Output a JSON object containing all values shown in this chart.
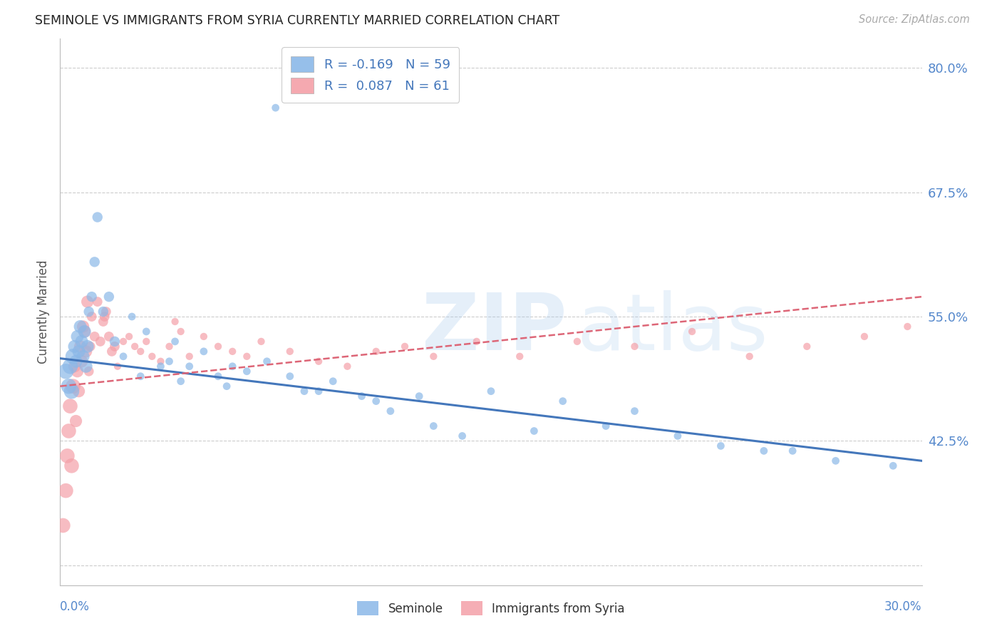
{
  "title": "SEMINOLE VS IMMIGRANTS FROM SYRIA CURRENTLY MARRIED CORRELATION CHART",
  "source": "Source: ZipAtlas.com",
  "ylabel": "Currently Married",
  "y_ticks": [
    30.0,
    42.5,
    55.0,
    67.5,
    80.0
  ],
  "y_tick_labels": [
    "",
    "42.5%",
    "55.0%",
    "67.5%",
    "80.0%"
  ],
  "x_min": 0.0,
  "x_max": 30.0,
  "y_min": 28.0,
  "y_max": 83.0,
  "blue_color": "#8BB8E8",
  "pink_color": "#F4A0A8",
  "line_blue": "#4477BB",
  "line_pink": "#DD6677",
  "background": "#FFFFFF",
  "grid_color": "#CCCCCC",
  "seminole_x": [
    0.2,
    0.3,
    0.35,
    0.4,
    0.45,
    0.5,
    0.55,
    0.6,
    0.65,
    0.7,
    0.75,
    0.8,
    0.85,
    0.9,
    0.95,
    1.0,
    1.1,
    1.2,
    1.3,
    1.5,
    1.7,
    1.9,
    2.2,
    2.5,
    3.0,
    3.5,
    4.0,
    4.5,
    5.0,
    5.5,
    6.5,
    7.2,
    8.5,
    9.5,
    10.5,
    11.5,
    13.0,
    15.0,
    17.5,
    19.0,
    21.5,
    24.5,
    27.0,
    29.0,
    7.5,
    2.8,
    6.0,
    12.5,
    20.0,
    9.0,
    14.0,
    16.5,
    23.0,
    25.5,
    11.0,
    5.8,
    3.8,
    4.2,
    8.0
  ],
  "seminole_y": [
    49.5,
    48.0,
    50.0,
    47.5,
    51.0,
    52.0,
    50.5,
    53.0,
    51.5,
    54.0,
    52.5,
    51.0,
    53.5,
    50.0,
    52.0,
    55.5,
    57.0,
    60.5,
    65.0,
    55.5,
    57.0,
    52.5,
    51.0,
    55.0,
    53.5,
    50.0,
    52.5,
    50.0,
    51.5,
    49.0,
    49.5,
    50.5,
    47.5,
    48.5,
    47.0,
    45.5,
    44.0,
    47.5,
    46.5,
    44.0,
    43.0,
    41.5,
    40.5,
    40.0,
    76.0,
    49.0,
    50.0,
    47.0,
    45.5,
    47.5,
    43.0,
    43.5,
    42.0,
    41.5,
    46.5,
    48.0,
    50.5,
    48.5,
    49.0
  ],
  "syria_x": [
    0.1,
    0.2,
    0.25,
    0.3,
    0.35,
    0.4,
    0.45,
    0.5,
    0.55,
    0.6,
    0.65,
    0.7,
    0.75,
    0.8,
    0.85,
    0.9,
    0.95,
    1.0,
    1.05,
    1.1,
    1.2,
    1.3,
    1.4,
    1.5,
    1.6,
    1.7,
    1.8,
    1.9,
    2.0,
    2.2,
    2.4,
    2.6,
    2.8,
    3.0,
    3.2,
    3.5,
    3.8,
    4.0,
    4.5,
    5.0,
    5.5,
    6.0,
    6.5,
    7.0,
    8.0,
    9.0,
    10.0,
    11.0,
    12.0,
    13.0,
    14.5,
    16.0,
    18.0,
    20.0,
    22.0,
    24.0,
    26.0,
    28.0,
    29.5,
    1.55,
    4.2
  ],
  "syria_y": [
    34.0,
    37.5,
    41.0,
    43.5,
    46.0,
    40.0,
    48.0,
    50.0,
    44.5,
    49.5,
    47.5,
    52.0,
    50.5,
    54.0,
    53.5,
    51.5,
    56.5,
    49.5,
    52.0,
    55.0,
    53.0,
    56.5,
    52.5,
    54.5,
    55.5,
    53.0,
    51.5,
    52.0,
    50.0,
    52.5,
    53.0,
    52.0,
    51.5,
    52.5,
    51.0,
    50.5,
    52.0,
    54.5,
    51.0,
    53.0,
    52.0,
    51.5,
    51.0,
    52.5,
    51.5,
    50.5,
    50.0,
    51.5,
    52.0,
    51.0,
    52.5,
    51.0,
    52.5,
    52.0,
    53.5,
    51.0,
    52.0,
    53.0,
    54.0,
    55.0,
    53.5
  ]
}
